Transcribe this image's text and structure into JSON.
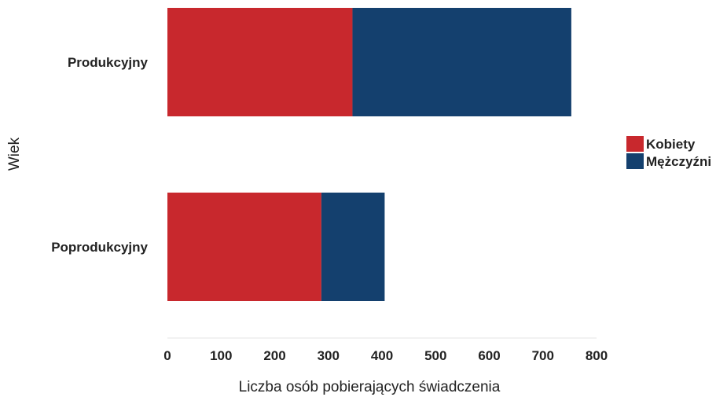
{
  "chart_data": {
    "type": "bar",
    "orientation": "horizontal",
    "stacked": true,
    "categories": [
      "Produkcyjny",
      "Poprodukcyjny"
    ],
    "series": [
      {
        "name": "Kobiety",
        "values": [
          345,
          287
        ],
        "color": "#c8282d"
      },
      {
        "name": "Mężczyźni",
        "values": [
          408,
          118
        ],
        "color": "#14406e"
      }
    ],
    "xlabel": "Liczba osób pobierających świadczenia",
    "ylabel": "Wiek",
    "xlim": [
      0,
      800
    ],
    "xticks": [
      0,
      100,
      200,
      300,
      400,
      500,
      600,
      700,
      800
    ],
    "grid": false,
    "legend_position": "right"
  }
}
